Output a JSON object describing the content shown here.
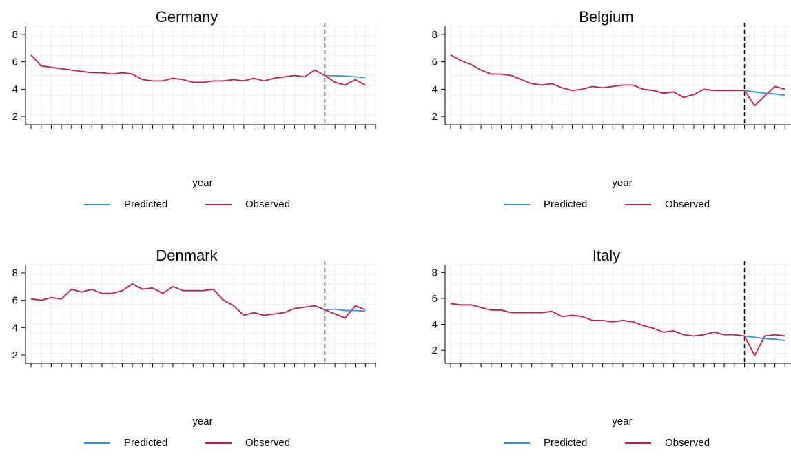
{
  "colors": {
    "predicted": "#2e8fe0",
    "observed": "#c8174c",
    "grid": "#ececec",
    "axis": "#000000"
  },
  "axis_label": "year",
  "legend": {
    "predicted": "Predicted",
    "observed": "Observed"
  },
  "chart_data": [
    {
      "type": "line",
      "title": "Germany",
      "xlabel": "year",
      "ylabel": "",
      "ylim": [
        1.4,
        8.6
      ],
      "yticks": [
        2,
        4,
        6,
        8
      ],
      "xtick_count": 35,
      "intervention_index": 29,
      "series": [
        {
          "name": "Observed",
          "x_start": 0,
          "values": [
            6.5,
            5.7,
            5.6,
            5.5,
            5.4,
            5.3,
            5.2,
            5.2,
            5.1,
            5.2,
            5.1,
            4.7,
            4.6,
            4.6,
            4.8,
            4.7,
            4.5,
            4.5,
            4.6,
            4.6,
            4.7,
            4.6,
            4.8,
            4.6,
            4.8,
            4.9,
            5.0,
            4.9,
            5.4,
            5.0,
            4.5,
            4.3,
            4.7,
            4.3
          ]
        },
        {
          "name": "Predicted",
          "x_start": 29,
          "values": [
            5.0,
            4.98,
            4.95,
            4.9,
            4.85
          ]
        }
      ]
    },
    {
      "type": "line",
      "title": "Belgium",
      "xlabel": "year",
      "ylabel": "",
      "ylim": [
        1.4,
        8.6
      ],
      "yticks": [
        2,
        4,
        6,
        8
      ],
      "xtick_count": 35,
      "intervention_index": 29,
      "series": [
        {
          "name": "Observed",
          "x_start": 0,
          "values": [
            6.5,
            6.1,
            5.8,
            5.4,
            5.1,
            5.1,
            5.0,
            4.7,
            4.4,
            4.3,
            4.4,
            4.1,
            3.9,
            4.0,
            4.2,
            4.1,
            4.2,
            4.3,
            4.3,
            4.0,
            3.9,
            3.7,
            3.8,
            3.4,
            3.6,
            4.0,
            3.9,
            3.9,
            3.9,
            3.9,
            2.8,
            3.5,
            4.2,
            4.0
          ]
        },
        {
          "name": "Predicted",
          "x_start": 29,
          "values": [
            3.9,
            3.8,
            3.7,
            3.65,
            3.55
          ]
        }
      ]
    },
    {
      "type": "line",
      "title": "Denmark",
      "xlabel": "year",
      "ylabel": "",
      "ylim": [
        1.4,
        8.6
      ],
      "yticks": [
        2,
        4,
        6,
        8
      ],
      "xtick_count": 35,
      "intervention_index": 29,
      "series": [
        {
          "name": "Observed",
          "x_start": 0,
          "values": [
            6.1,
            6.0,
            6.2,
            6.1,
            6.8,
            6.6,
            6.8,
            6.5,
            6.5,
            6.7,
            7.2,
            6.8,
            6.9,
            6.5,
            7.0,
            6.7,
            6.7,
            6.7,
            6.8,
            6.0,
            5.6,
            4.9,
            5.1,
            4.9,
            5.0,
            5.1,
            5.4,
            5.5,
            5.6,
            5.3,
            5.0,
            4.7,
            5.6,
            5.3
          ]
        },
        {
          "name": "Predicted",
          "x_start": 29,
          "values": [
            5.3,
            5.35,
            5.25,
            5.25,
            5.2
          ]
        }
      ]
    },
    {
      "type": "line",
      "title": "Italy",
      "xlabel": "year",
      "ylabel": "",
      "ylim": [
        1.0,
        8.6
      ],
      "yticks": [
        2,
        4,
        6,
        8
      ],
      "xtick_count": 35,
      "intervention_index": 29,
      "series": [
        {
          "name": "Observed",
          "x_start": 0,
          "values": [
            5.6,
            5.5,
            5.5,
            5.3,
            5.1,
            5.1,
            4.9,
            4.9,
            4.9,
            4.9,
            5.0,
            4.6,
            4.7,
            4.6,
            4.3,
            4.3,
            4.2,
            4.3,
            4.2,
            3.9,
            3.7,
            3.4,
            3.5,
            3.2,
            3.1,
            3.2,
            3.4,
            3.2,
            3.2,
            3.1,
            1.6,
            3.1,
            3.2,
            3.1
          ]
        },
        {
          "name": "Predicted",
          "x_start": 29,
          "values": [
            3.1,
            3.0,
            2.9,
            2.85,
            2.75
          ]
        }
      ]
    }
  ]
}
